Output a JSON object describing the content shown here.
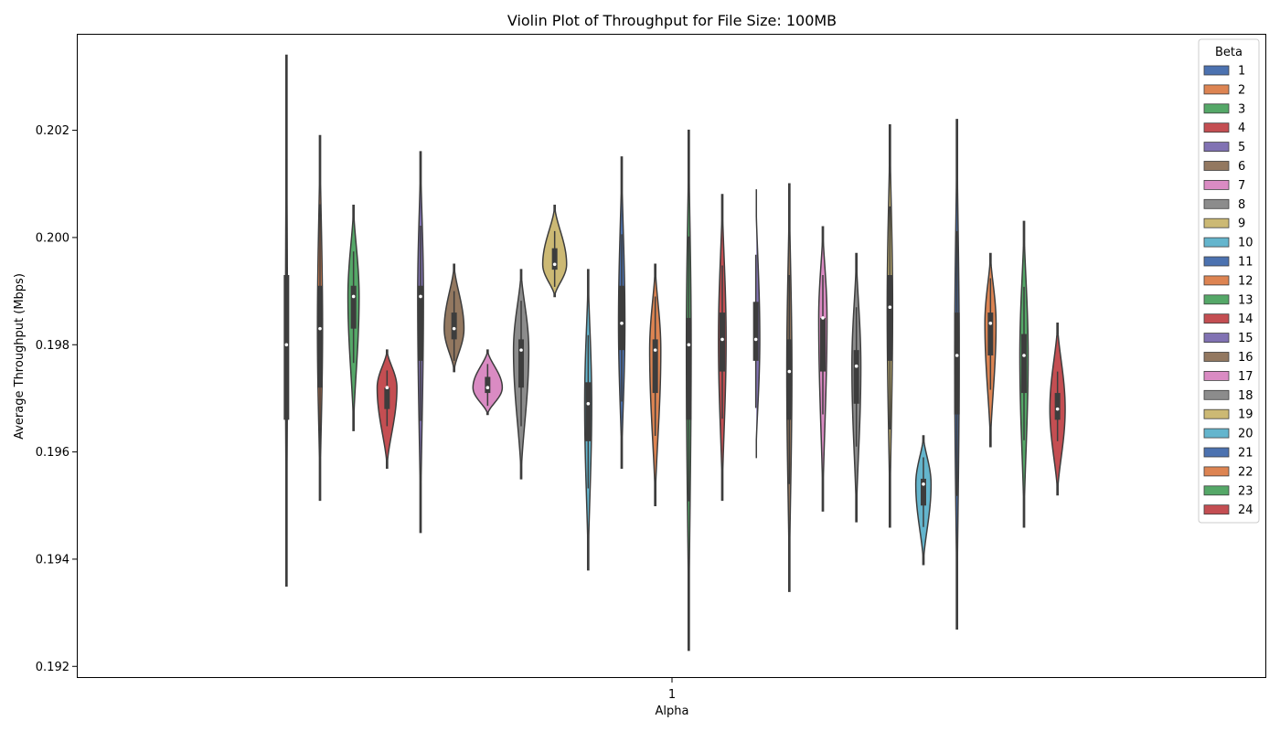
{
  "chart_data": {
    "type": "violin",
    "title": "Violin Plot of Throughput for File Size: 100MB",
    "xlabel": "Alpha",
    "ylabel": "Average Throughput (Mbps)",
    "x_categories": [
      "1"
    ],
    "ylim": [
      0.1918,
      0.2038
    ],
    "yticks": [
      0.192,
      0.194,
      0.196,
      0.198,
      0.2,
      0.202
    ],
    "ytick_labels": [
      "0.192",
      "0.194",
      "0.196",
      "0.198",
      "0.200",
      "0.202"
    ],
    "grid": false,
    "legend": {
      "title": "Beta",
      "placement": "top-right"
    },
    "series": [
      {
        "name": "1",
        "color": "#4c72b0",
        "min": 0.1935,
        "max": 0.2034,
        "q1": 0.1966,
        "median": 0.198,
        "q3": 0.1993,
        "width": 0.06
      },
      {
        "name": "2",
        "color": "#dd8452",
        "min": 0.1951,
        "max": 0.2019,
        "q1": 0.1972,
        "median": 0.1983,
        "q3": 0.1991,
        "width": 0.16
      },
      {
        "name": "3",
        "color": "#55a868",
        "min": 0.1964,
        "max": 0.2006,
        "q1": 0.1983,
        "median": 0.1989,
        "q3": 0.1991,
        "width": 0.35
      },
      {
        "name": "4",
        "color": "#c44e52",
        "min": 0.1957,
        "max": 0.1979,
        "q1": 0.1968,
        "median": 0.1972,
        "q3": 0.1972,
        "width": 0.62
      },
      {
        "name": "5",
        "color": "#8172b3",
        "min": 0.1945,
        "max": 0.2016,
        "q1": 0.1977,
        "median": 0.1989,
        "q3": 0.1991,
        "width": 0.18
      },
      {
        "name": "6",
        "color": "#937860",
        "min": 0.1975,
        "max": 0.1995,
        "q1": 0.1981,
        "median": 0.1983,
        "q3": 0.1986,
        "width": 0.62
      },
      {
        "name": "7",
        "color": "#da8bc3",
        "min": 0.1967,
        "max": 0.1979,
        "q1": 0.1971,
        "median": 0.1972,
        "q3": 0.1974,
        "width": 0.92
      },
      {
        "name": "8",
        "color": "#8c8c8c",
        "min": 0.1955,
        "max": 0.1994,
        "q1": 0.1972,
        "median": 0.1979,
        "q3": 0.1981,
        "width": 0.48
      },
      {
        "name": "9",
        "color": "#ccb974",
        "min": 0.1989,
        "max": 0.2006,
        "q1": 0.1994,
        "median": 0.1995,
        "q3": 0.1998,
        "width": 0.75
      },
      {
        "name": "10",
        "color": "#64b5cd",
        "min": 0.1938,
        "max": 0.1994,
        "q1": 0.1962,
        "median": 0.1969,
        "q3": 0.1973,
        "width": 0.22
      },
      {
        "name": "11",
        "color": "#4c72b0",
        "min": 0.1957,
        "max": 0.2015,
        "q1": 0.1979,
        "median": 0.1984,
        "q3": 0.1991,
        "width": 0.2
      },
      {
        "name": "12",
        "color": "#dd8452",
        "min": 0.195,
        "max": 0.1995,
        "q1": 0.1971,
        "median": 0.1979,
        "q3": 0.1981,
        "width": 0.35
      },
      {
        "name": "13",
        "color": "#55a868",
        "min": 0.1923,
        "max": 0.202,
        "q1": 0.1966,
        "median": 0.198,
        "q3": 0.1985,
        "width": 0.15
      },
      {
        "name": "14",
        "color": "#c44e52",
        "min": 0.1951,
        "max": 0.2008,
        "q1": 0.1975,
        "median": 0.1981,
        "q3": 0.1986,
        "width": 0.24
      },
      {
        "name": "15",
        "color": "#8172b3",
        "min": 0.1958,
        "max": 0.2009,
        "q1": 0.1977,
        "median": 0.1981,
        "q3": 0.1988,
        "width": 0.25
      },
      {
        "name": "16",
        "color": "#937860",
        "min": 0.1934,
        "max": 0.201,
        "q1": 0.1966,
        "median": 0.1975,
        "q3": 0.1981,
        "width": 0.16
      },
      {
        "name": "17",
        "color": "#da8bc3",
        "min": 0.1949,
        "max": 0.2002,
        "q1": 0.1975,
        "median": 0.1985,
        "q3": 0.1985,
        "width": 0.26
      },
      {
        "name": "18",
        "color": "#8c8c8c",
        "min": 0.1947,
        "max": 0.1997,
        "q1": 0.1969,
        "median": 0.1976,
        "q3": 0.1979,
        "width": 0.28
      },
      {
        "name": "19",
        "color": "#ccb974",
        "min": 0.1946,
        "max": 0.2021,
        "q1": 0.1977,
        "median": 0.1987,
        "q3": 0.1993,
        "width": 0.17
      },
      {
        "name": "20",
        "color": "#64b5cd",
        "min": 0.1939,
        "max": 0.1963,
        "q1": 0.195,
        "median": 0.1954,
        "q3": 0.1955,
        "width": 0.48
      },
      {
        "name": "21",
        "color": "#4c72b0",
        "min": 0.1927,
        "max": 0.2022,
        "q1": 0.1967,
        "median": 0.1978,
        "q3": 0.1986,
        "width": 0.14
      },
      {
        "name": "22",
        "color": "#dd8452",
        "min": 0.1961,
        "max": 0.1997,
        "q1": 0.1978,
        "median": 0.1984,
        "q3": 0.1986,
        "width": 0.35
      },
      {
        "name": "23",
        "color": "#55a868",
        "min": 0.1946,
        "max": 0.2003,
        "q1": 0.1971,
        "median": 0.1978,
        "q3": 0.1982,
        "width": 0.26
      },
      {
        "name": "24",
        "color": "#c44e52",
        "min": 0.1952,
        "max": 0.1984,
        "q1": 0.1966,
        "median": 0.1968,
        "q3": 0.1971,
        "width": 0.48
      }
    ]
  }
}
